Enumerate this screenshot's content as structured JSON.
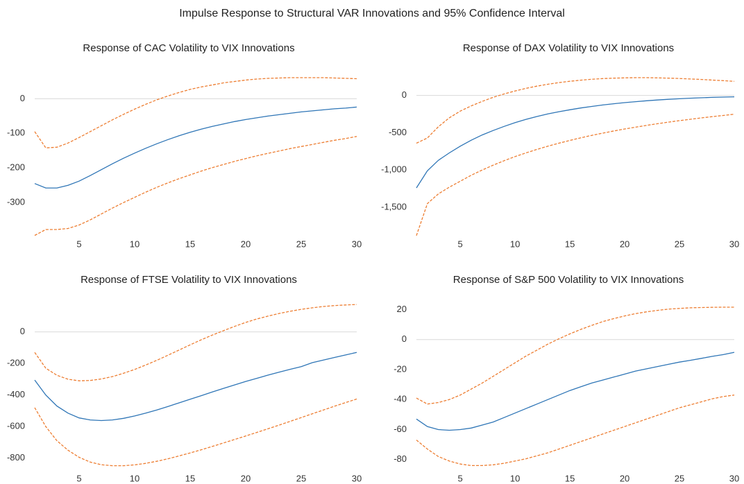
{
  "title": "Impulse Response to Structural VAR Innovations and  95% Confidence Interval",
  "chart_data": [
    {
      "type": "line",
      "title": "Response of CAC Volatility to VIX Innovations",
      "x": [
        1,
        2,
        3,
        4,
        5,
        6,
        7,
        8,
        9,
        10,
        11,
        12,
        13,
        14,
        15,
        16,
        17,
        18,
        19,
        20,
        21,
        22,
        23,
        24,
        25,
        26,
        27,
        28,
        29,
        30
      ],
      "xlim": [
        1,
        30
      ],
      "xticks": [
        5,
        10,
        15,
        20,
        25,
        30
      ],
      "ylim": [
        -400,
        85
      ],
      "yticks": [
        -300,
        -200,
        -100,
        0
      ],
      "series": [
        {
          "color": "#2e75b6",
          "line_style": "solid",
          "values": [
            -245,
            -258,
            -258,
            -250,
            -238,
            -222,
            -205,
            -188,
            -172,
            -157,
            -143,
            -130,
            -118,
            -107,
            -97,
            -88,
            -80,
            -73,
            -66,
            -60,
            -55,
            -50,
            -46,
            -42,
            -38,
            -35,
            -32,
            -29,
            -27,
            -24
          ]
        },
        {
          "color": "#ed7d31",
          "line_style": "dashed",
          "values": [
            -95,
            -142,
            -140,
            -128,
            -112,
            -95,
            -78,
            -61,
            -45,
            -30,
            -16,
            -3,
            8,
            18,
            27,
            34,
            40,
            46,
            50,
            54,
            57,
            59,
            60,
            61,
            61,
            61,
            61,
            60,
            59,
            58
          ]
        },
        {
          "color": "#ed7d31",
          "line_style": "dashed",
          "values": [
            -395,
            -378,
            -378,
            -375,
            -365,
            -350,
            -333,
            -316,
            -300,
            -285,
            -270,
            -256,
            -243,
            -231,
            -220,
            -209,
            -199,
            -190,
            -181,
            -173,
            -165,
            -158,
            -151,
            -144,
            -138,
            -132,
            -126,
            -120,
            -115,
            -109
          ]
        }
      ]
    },
    {
      "type": "line",
      "title": "Response of  DAX Volatility to VIX Innovations",
      "x": [
        1,
        2,
        3,
        4,
        5,
        6,
        7,
        8,
        9,
        10,
        11,
        12,
        13,
        14,
        15,
        16,
        17,
        18,
        19,
        20,
        21,
        22,
        23,
        24,
        25,
        26,
        27,
        28,
        29,
        30
      ],
      "xlim": [
        1,
        30
      ],
      "xticks": [
        5,
        10,
        15,
        20,
        25,
        30
      ],
      "ylim": [
        -1900,
        350
      ],
      "yticks": [
        {
          "value": -1500,
          "label": "-1,500"
        },
        {
          "value": -1000,
          "label": "-1,000"
        },
        -500,
        0
      ],
      "series": [
        {
          "color": "#2e75b6",
          "line_style": "solid",
          "values": [
            -1240,
            -1010,
            -870,
            -770,
            -680,
            -600,
            -530,
            -470,
            -415,
            -365,
            -320,
            -282,
            -248,
            -218,
            -192,
            -168,
            -147,
            -128,
            -111,
            -96,
            -83,
            -71,
            -61,
            -52,
            -44,
            -37,
            -31,
            -26,
            -22,
            -18
          ]
        },
        {
          "color": "#ed7d31",
          "line_style": "dashed",
          "values": [
            -640,
            -570,
            -420,
            -300,
            -210,
            -140,
            -80,
            -25,
            20,
            60,
            95,
            125,
            150,
            172,
            190,
            205,
            217,
            226,
            232,
            236,
            238,
            238,
            236,
            232,
            227,
            221,
            214,
            206,
            198,
            189
          ]
        },
        {
          "color": "#ed7d31",
          "line_style": "dashed",
          "values": [
            -1880,
            -1450,
            -1320,
            -1230,
            -1150,
            -1070,
            -1000,
            -935,
            -875,
            -820,
            -770,
            -723,
            -680,
            -640,
            -603,
            -568,
            -535,
            -505,
            -477,
            -450,
            -425,
            -401,
            -379,
            -358,
            -338,
            -319,
            -301,
            -284,
            -268,
            -252
          ]
        }
      ]
    },
    {
      "type": "line",
      "title": "Response of  FTSE Volatility to VIX Innovations",
      "x": [
        1,
        2,
        3,
        4,
        5,
        6,
        7,
        8,
        9,
        10,
        11,
        12,
        13,
        14,
        15,
        16,
        17,
        18,
        19,
        20,
        21,
        22,
        23,
        24,
        25,
        26,
        27,
        28,
        29,
        30
      ],
      "xlim": [
        1,
        30
      ],
      "xticks": [
        5,
        10,
        15,
        20,
        25,
        30
      ],
      "ylim": [
        -885,
        170
      ],
      "yticks": [
        -800,
        -600,
        -400,
        -200,
        0
      ],
      "series": [
        {
          "color": "#2e75b6",
          "line_style": "solid",
          "values": [
            -305,
            -400,
            -470,
            -515,
            -545,
            -558,
            -562,
            -558,
            -548,
            -533,
            -515,
            -495,
            -473,
            -450,
            -427,
            -404,
            -381,
            -358,
            -336,
            -314,
            -294,
            -274,
            -255,
            -237,
            -220,
            -195,
            -178,
            -162,
            -146,
            -130
          ]
        },
        {
          "color": "#ed7d31",
          "line_style": "dashed",
          "values": [
            -130,
            -230,
            -275,
            -300,
            -310,
            -308,
            -298,
            -283,
            -262,
            -238,
            -210,
            -180,
            -148,
            -115,
            -82,
            -50,
            -20,
            8,
            35,
            60,
            82,
            100,
            117,
            131,
            143,
            153,
            161,
            167,
            171,
            174
          ]
        },
        {
          "color": "#ed7d31",
          "line_style": "dashed",
          "values": [
            -480,
            -600,
            -690,
            -750,
            -795,
            -825,
            -842,
            -848,
            -848,
            -843,
            -833,
            -820,
            -804,
            -786,
            -767,
            -747,
            -726,
            -704,
            -682,
            -660,
            -637,
            -614,
            -591,
            -567,
            -543,
            -519,
            -495,
            -471,
            -448,
            -425
          ]
        }
      ]
    },
    {
      "type": "line",
      "title": "Response of  S&P 500 Volatility to VIX Innovations",
      "x": [
        1,
        2,
        3,
        4,
        5,
        6,
        7,
        8,
        9,
        10,
        11,
        12,
        13,
        14,
        15,
        16,
        17,
        18,
        19,
        20,
        21,
        22,
        23,
        24,
        25,
        26,
        27,
        28,
        29,
        30
      ],
      "xlim": [
        1,
        30
      ],
      "xticks": [
        5,
        10,
        15,
        20,
        25,
        30
      ],
      "ylim": [
        -88,
        23
      ],
      "yticks": [
        -80,
        -60,
        -40,
        -20,
        0,
        20
      ],
      "series": [
        {
          "color": "#2e75b6",
          "line_style": "solid",
          "values": [
            -53,
            -58,
            -60,
            -60.5,
            -60,
            -59,
            -57,
            -55,
            -52,
            -49,
            -46,
            -43,
            -40,
            -37,
            -34,
            -31.5,
            -29,
            -27,
            -25,
            -23,
            -21,
            -19.5,
            -18,
            -16.5,
            -15,
            -13.8,
            -12.5,
            -11.2,
            -10,
            -8.5
          ]
        },
        {
          "color": "#ed7d31",
          "line_style": "dashed",
          "values": [
            -39,
            -43,
            -42,
            -40,
            -37,
            -33,
            -29,
            -24.5,
            -20,
            -15.5,
            -11,
            -7,
            -3,
            0.5,
            3.8,
            6.8,
            9.5,
            12,
            14,
            15.8,
            17.3,
            18.5,
            19.5,
            20.3,
            20.8,
            21.2,
            21.4,
            21.5,
            21.6,
            21.6
          ]
        },
        {
          "color": "#ed7d31",
          "line_style": "dashed",
          "values": [
            -67,
            -73,
            -78,
            -81,
            -83,
            -84,
            -84,
            -83.5,
            -82.5,
            -81,
            -79.5,
            -77.5,
            -75.5,
            -73,
            -70.5,
            -68,
            -65.5,
            -63,
            -60.5,
            -58,
            -55.5,
            -53,
            -50.5,
            -48,
            -45.5,
            -43.5,
            -41.5,
            -39.5,
            -38,
            -37
          ]
        }
      ]
    }
  ]
}
